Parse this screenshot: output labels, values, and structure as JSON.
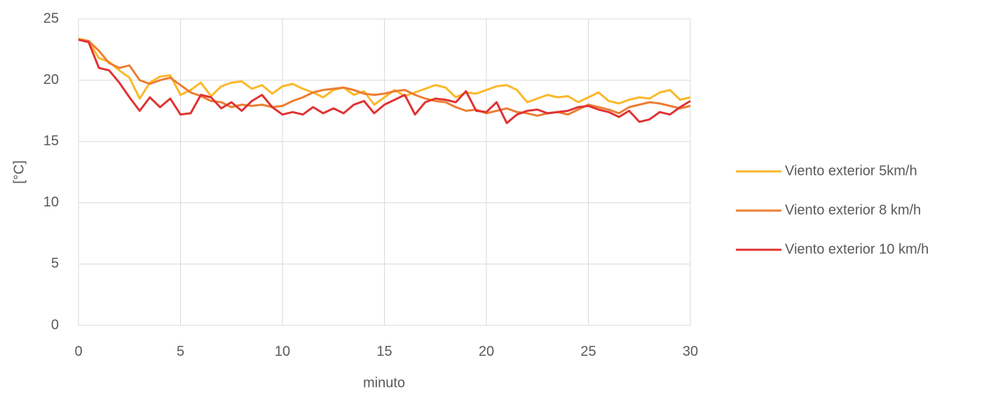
{
  "chart_data": {
    "type": "line",
    "xlabel": "minuto",
    "ylabel": "[°C]",
    "x": [
      0,
      0.5,
      1,
      1.5,
      2,
      2.5,
      3,
      3.5,
      4,
      4.5,
      5,
      5.5,
      6,
      6.5,
      7,
      7.5,
      8,
      8.5,
      9,
      9.5,
      10,
      10.5,
      11,
      11.5,
      12,
      12.5,
      13,
      13.5,
      14,
      14.5,
      15,
      15.5,
      16,
      16.5,
      17,
      17.5,
      18,
      18.5,
      19,
      19.5,
      20,
      20.5,
      21,
      21.5,
      22,
      22.5,
      23,
      23.5,
      24,
      24.5,
      25,
      25.5,
      26,
      26.5,
      27,
      27.5,
      28,
      28.5,
      29,
      29.5,
      30
    ],
    "series": [
      {
        "name": "Viento exterior 5km/h",
        "color": "#fbb829",
        "values": [
          23.4,
          23.2,
          21.8,
          21.5,
          20.8,
          20.2,
          18.5,
          19.8,
          20.3,
          20.4,
          18.8,
          19.2,
          19.8,
          18.7,
          19.5,
          19.8,
          19.9,
          19.3,
          19.6,
          18.9,
          19.5,
          19.7,
          19.3,
          19.0,
          18.6,
          19.2,
          19.4,
          18.8,
          19.1,
          18.0,
          18.6,
          19.2,
          18.7,
          19.0,
          19.3,
          19.6,
          19.4,
          18.6,
          19.0,
          18.9,
          19.2,
          19.5,
          19.6,
          19.2,
          18.2,
          18.5,
          18.8,
          18.6,
          18.7,
          18.2,
          18.6,
          19.0,
          18.3,
          18.1,
          18.4,
          18.6,
          18.5,
          19.0,
          19.2,
          18.4,
          18.6
        ]
      },
      {
        "name": "Viento exterior 8 km/h",
        "color": "#ed7d31",
        "values": [
          23.3,
          23.2,
          22.4,
          21.4,
          21.0,
          21.2,
          20.0,
          19.7,
          20.0,
          20.2,
          19.6,
          19.0,
          18.7,
          18.3,
          18.2,
          17.8,
          18.0,
          17.9,
          18.0,
          17.8,
          17.9,
          18.3,
          18.6,
          19.0,
          19.2,
          19.3,
          19.4,
          19.2,
          18.9,
          18.8,
          18.9,
          19.1,
          19.2,
          18.8,
          18.5,
          18.3,
          18.2,
          17.8,
          17.5,
          17.6,
          17.3,
          17.5,
          17.7,
          17.4,
          17.3,
          17.1,
          17.3,
          17.4,
          17.2,
          17.6,
          18.0,
          17.8,
          17.6,
          17.3,
          17.8,
          18.0,
          18.2,
          18.1,
          17.9,
          17.7,
          17.9
        ]
      },
      {
        "name": "Viento exterior 10 km/h",
        "color": "#e03232",
        "values": [
          23.3,
          23.1,
          21.0,
          20.8,
          19.8,
          18.6,
          17.5,
          18.6,
          17.8,
          18.5,
          17.2,
          17.3,
          18.8,
          18.6,
          17.7,
          18.2,
          17.5,
          18.3,
          18.8,
          17.8,
          17.2,
          17.4,
          17.2,
          17.8,
          17.3,
          17.7,
          17.3,
          18.0,
          18.3,
          17.3,
          18.0,
          18.4,
          18.8,
          17.2,
          18.2,
          18.5,
          18.4,
          18.2,
          19.1,
          17.5,
          17.4,
          18.2,
          16.5,
          17.2,
          17.5,
          17.6,
          17.3,
          17.4,
          17.5,
          17.8,
          17.9,
          17.6,
          17.4,
          17.0,
          17.5,
          16.6,
          16.8,
          17.4,
          17.2,
          17.8,
          18.3
        ]
      }
    ],
    "xlim": [
      0,
      30
    ],
    "xticks": [
      0,
      5,
      10,
      15,
      20,
      25,
      30
    ],
    "ylim": [
      0,
      25
    ],
    "yticks": [
      0,
      5,
      10,
      15,
      20,
      25
    ],
    "grid": true,
    "legend": "right"
  }
}
